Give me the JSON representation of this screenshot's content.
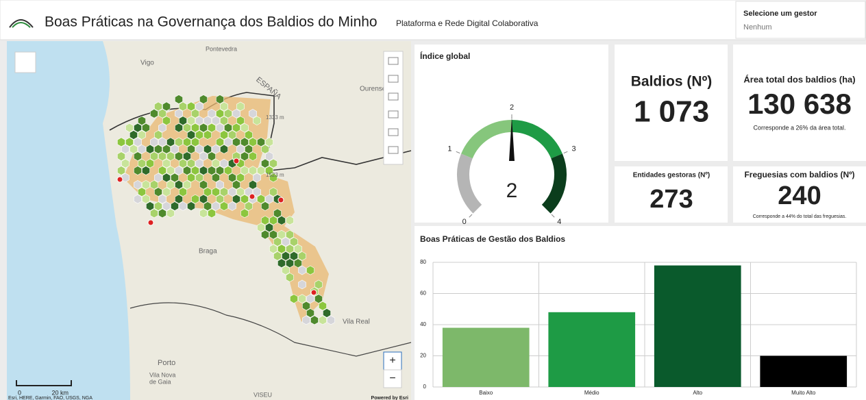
{
  "header": {
    "title": "Boas Práticas na Governança dos Baldios do Minho",
    "subtitle": "Plataforma e Rede Digital Colaborativa",
    "selector_label": "Selecione um gestor",
    "selector_value": "Nenhum"
  },
  "map": {
    "labels": [
      "Pontevedra",
      "Vigo",
      "Ourense",
      "ESPAÑA",
      "1333 m",
      "1523 m",
      "Braga",
      "Vila Real",
      "Porto",
      "Vila Nova",
      "de Gaia",
      "VISEU"
    ],
    "scale": {
      "zero": "0",
      "distance": "20 km"
    },
    "attribution": "Esri, HERE, Garmin, FAO, USGS, NGA",
    "powered_by": "Powered by Esri",
    "zoom_in": "+",
    "zoom_out": "−"
  },
  "gauge": {
    "title": "Índice global",
    "min": 0,
    "max": 4,
    "ticks": [
      0,
      1,
      2,
      3,
      4
    ],
    "value": 2,
    "band_colors": [
      "#b5b5b5",
      "#86c67c",
      "#1e9b45",
      "#0b3d1c"
    ]
  },
  "cards": [
    {
      "title": "Baldios (Nº)",
      "value": "1 073"
    },
    {
      "title": "Área total dos baldios (ha)",
      "value": "130 638",
      "note": "Corresponde a 26% da área total."
    },
    {
      "title": "Entidades gestoras (Nº)",
      "value": "273"
    },
    {
      "title": "Freguesias com baldios (Nº)",
      "value": "240",
      "note": "Corresponde a 44% do total das freguesias."
    }
  ],
  "chart_data": {
    "type": "bar",
    "title": "Boas Práticas de Gestão dos Baldios",
    "categories": [
      "Baixo",
      "Médio",
      "Alto",
      "Muito Alto"
    ],
    "values": [
      38,
      48,
      78,
      20
    ],
    "colors": [
      "#7db86a",
      "#1e9b45",
      "#0a5a2c",
      "#000000"
    ],
    "ylim": [
      0,
      80
    ],
    "yticks": [
      0,
      20,
      40,
      60,
      80
    ],
    "grid": true
  }
}
